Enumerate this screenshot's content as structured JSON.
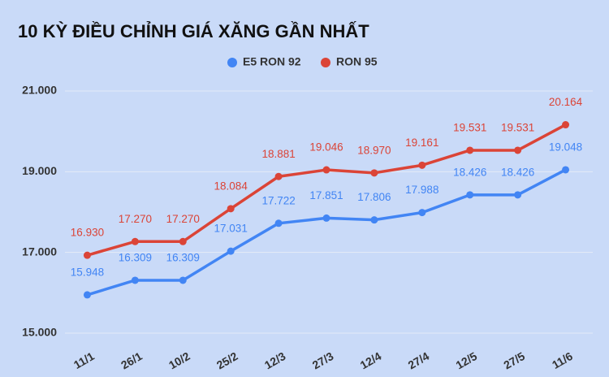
{
  "chart_data": {
    "type": "line",
    "title": "10 KỲ ĐIỀU CHỈNH GIÁ XĂNG GẦN NHẤT",
    "categories": [
      "11/1",
      "26/1",
      "10/2",
      "25/2",
      "12/3",
      "27/3",
      "12/4",
      "27/4",
      "12/5",
      "27/5",
      "11/6"
    ],
    "series": [
      {
        "name": "E5 RON 92",
        "color": "#4285f4",
        "values": [
          15948,
          16309,
          16309,
          17031,
          17722,
          17851,
          17806,
          17988,
          18426,
          18426,
          19048
        ],
        "value_labels": [
          "15.948",
          "16.309",
          "16.309",
          "17.031",
          "17.722",
          "17.851",
          "17.806",
          "17.988",
          "18.426",
          "18.426",
          "19.048"
        ]
      },
      {
        "name": "RON 95",
        "color": "#db4437",
        "values": [
          16930,
          17270,
          17270,
          18084,
          18881,
          19046,
          18970,
          19161,
          19531,
          19531,
          20164
        ],
        "value_labels": [
          "16.930",
          "17.270",
          "17.270",
          "18.084",
          "18.881",
          "19.046",
          "18.970",
          "19.161",
          "19.531",
          "19.531",
          "20.164"
        ]
      }
    ],
    "ylim": [
      15000,
      21000
    ],
    "yticks": [
      {
        "value": 15000,
        "label": "15.000"
      },
      {
        "value": 17000,
        "label": "17.000"
      },
      {
        "value": 19000,
        "label": "19.000"
      },
      {
        "value": 21000,
        "label": "21.000"
      }
    ],
    "grid": true,
    "legend": "top"
  }
}
